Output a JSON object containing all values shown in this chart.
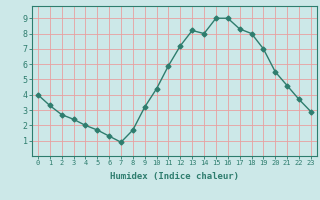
{
  "x": [
    0,
    1,
    2,
    3,
    4,
    5,
    6,
    7,
    8,
    9,
    10,
    11,
    12,
    13,
    14,
    15,
    16,
    17,
    18,
    19,
    20,
    21,
    22,
    23
  ],
  "y": [
    4.0,
    3.3,
    2.7,
    2.4,
    2.0,
    1.7,
    1.3,
    0.9,
    1.7,
    3.2,
    4.4,
    5.9,
    7.2,
    8.2,
    8.0,
    9.0,
    9.0,
    8.3,
    8.0,
    7.0,
    5.5,
    4.6,
    3.7,
    2.9
  ],
  "xlabel": "Humidex (Indice chaleur)",
  "xlim": [
    -0.5,
    23.5
  ],
  "ylim": [
    0,
    9.8
  ],
  "yticks": [
    1,
    2,
    3,
    4,
    5,
    6,
    7,
    8,
    9
  ],
  "xticks": [
    0,
    1,
    2,
    3,
    4,
    5,
    6,
    7,
    8,
    9,
    10,
    11,
    12,
    13,
    14,
    15,
    16,
    17,
    18,
    19,
    20,
    21,
    22,
    23
  ],
  "line_color": "#2e7d6e",
  "marker": "D",
  "marker_size": 2.5,
  "bg_color": "#cce8e8",
  "grid_color": "#e8a0a0",
  "tick_color": "#2e7d6e",
  "spine_color": "#2e7d6e",
  "xlabel_fontsize": 6.5,
  "tick_fontsize_x": 5.0,
  "tick_fontsize_y": 6.0
}
